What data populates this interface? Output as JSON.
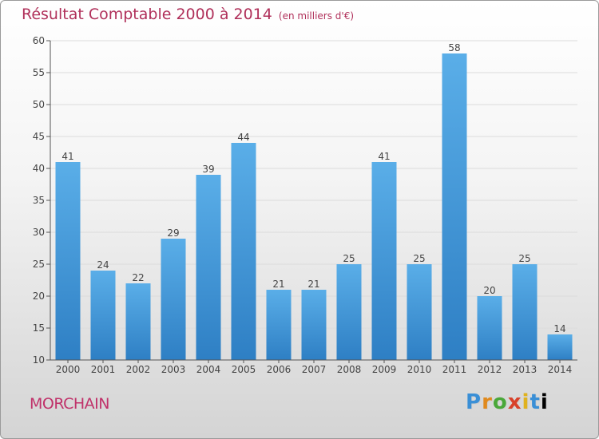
{
  "title": "Résultat Comptable 2000 à 2014",
  "subtitle": "(en milliers d'€)",
  "commune": "MORCHAIN",
  "brand": {
    "letters": [
      "P",
      "r",
      "o",
      "x",
      "i",
      "t",
      "i"
    ]
  },
  "colors": {
    "title": "#b0305a",
    "bar_top": "#5aaee8",
    "bar_bottom": "#2e7fc4",
    "grid": "#dcdcdc"
  },
  "chart_data": {
    "type": "bar",
    "title": "Résultat Comptable 2000 à 2014 (en milliers d'€)",
    "categories": [
      "2000",
      "2001",
      "2002",
      "2003",
      "2004",
      "2005",
      "2006",
      "2007",
      "2008",
      "2009",
      "2010",
      "2011",
      "2012",
      "2013",
      "2014"
    ],
    "values": [
      41,
      24,
      22,
      29,
      39,
      44,
      21,
      21,
      25,
      41,
      25,
      58,
      20,
      25,
      14
    ],
    "xlabel": "",
    "ylabel": "",
    "ylim": [
      10,
      60
    ],
    "yticks": [
      10,
      15,
      20,
      25,
      30,
      35,
      40,
      45,
      50,
      55,
      60
    ],
    "grid": true
  }
}
